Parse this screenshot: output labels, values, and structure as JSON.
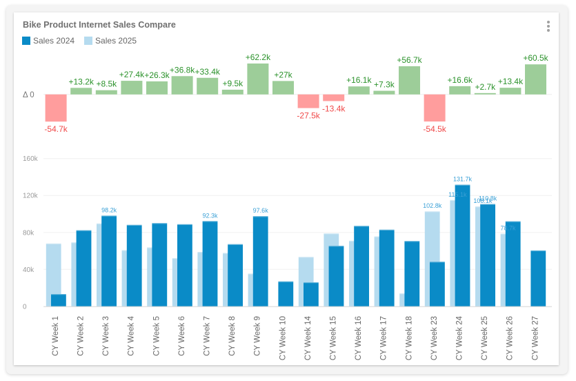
{
  "card": {
    "title": "Bike Product Internet Sales Compare",
    "menu_icon": "kebab-menu-icon"
  },
  "legend": [
    {
      "label": "Sales 2024",
      "color": "#0a8bc7"
    },
    {
      "label": "Sales 2025",
      "color": "#b5dbef"
    }
  ],
  "chart_data": [
    {
      "type": "bar",
      "name": "delta",
      "title": "",
      "zero_label": "Δ 0",
      "categories": [
        "CY Week 1",
        "CY Week 2",
        "CY Week 3",
        "CY Week 4",
        "CY Week 5",
        "CY Week 6",
        "CY Week 7",
        "CY Week 8",
        "CY Week 9",
        "CY Week 10",
        "CY Week 14",
        "CY Week 15",
        "CY Week 16",
        "CY Week 17",
        "CY Week 18",
        "CY Week 23",
        "CY Week 24",
        "CY Week 25",
        "CY Week 26",
        "CY Week 27"
      ],
      "values": [
        -54.7,
        13.2,
        8.5,
        27.4,
        26.3,
        36.8,
        33.4,
        9.5,
        62.2,
        27,
        -27.5,
        -13.4,
        16.1,
        7.3,
        56.7,
        -54.5,
        16.6,
        2.7,
        13.4,
        60.5
      ],
      "labels": [
        "-54.7k",
        "+13.2k",
        "+8.5k",
        "+27.4k",
        "+26.3k",
        "+36.8k",
        "+33.4k",
        "+9.5k",
        "+62.2k",
        "+27k",
        "-27.5k",
        "-13.4k",
        "+16.1k",
        "+7.3k",
        "+56.7k",
        "-54.5k",
        "+16.6k",
        "+2.7k",
        "+13.4k",
        "+60.5k"
      ],
      "units": "thousands",
      "colors": {
        "positive_bar": "#9dcd99",
        "negative_bar": "#ff9d9d",
        "positive_text": "#2b922b",
        "negative_text": "#f04848",
        "zero_line": "#eeeeee"
      }
    },
    {
      "type": "bar",
      "name": "sales",
      "title": "Bike Product Internet Sales Compare",
      "xlabel": "",
      "ylabel": "",
      "categories": [
        "CY Week 1",
        "CY Week 2",
        "CY Week 3",
        "CY Week 4",
        "CY Week 5",
        "CY Week 6",
        "CY Week 7",
        "CY Week 8",
        "CY Week 9",
        "CY Week 10",
        "CY Week 14",
        "CY Week 15",
        "CY Week 16",
        "CY Week 17",
        "CY Week 18",
        "CY Week 23",
        "CY Week 24",
        "CY Week 25",
        "CY Week 26",
        "CY Week 27"
      ],
      "series": [
        {
          "name": "Sales 2025",
          "color": "#b5dbef",
          "values": [
            68.0,
            69.2,
            89.7,
            60.8,
            63.8,
            52.1,
            58.9,
            57.8,
            35.4,
            0,
            53.5,
            78.9,
            71.0,
            75.7,
            14.0,
            102.8,
            115.1,
            108.1,
            78.7,
            0
          ],
          "labels": [
            null,
            null,
            null,
            null,
            null,
            null,
            null,
            null,
            null,
            null,
            null,
            null,
            null,
            null,
            null,
            "102.8k",
            "115.1k",
            "108.1k",
            "78.7k",
            null
          ]
        },
        {
          "name": "Sales 2024",
          "color": "#0a8bc7",
          "values": [
            13.3,
            82.4,
            98.2,
            88.2,
            90.1,
            88.9,
            92.3,
            67.3,
            97.6,
            27.0,
            26.0,
            65.5,
            87.1,
            83.0,
            70.7,
            48.3,
            131.7,
            110.8,
            92.1,
            60.5
          ],
          "labels": [
            null,
            null,
            "98.2k",
            null,
            null,
            null,
            "92.3k",
            null,
            "97.6k",
            null,
            null,
            null,
            null,
            null,
            null,
            null,
            "131.7k",
            "110.8k",
            null,
            null
          ]
        }
      ],
      "units": "thousands",
      "ylim": [
        0,
        160
      ],
      "yticks": [
        0,
        40,
        80,
        120,
        160
      ],
      "ytick_labels": [
        "0",
        "40k",
        "80k",
        "120k",
        "160k"
      ],
      "grid": true,
      "legend": "top-left",
      "colors": {
        "data_label": "#3aa0d6",
        "grid": "#f0f0f0",
        "axis": "#d6d6d6",
        "tick_label": "#999999",
        "category_label": "#666666"
      }
    }
  ]
}
